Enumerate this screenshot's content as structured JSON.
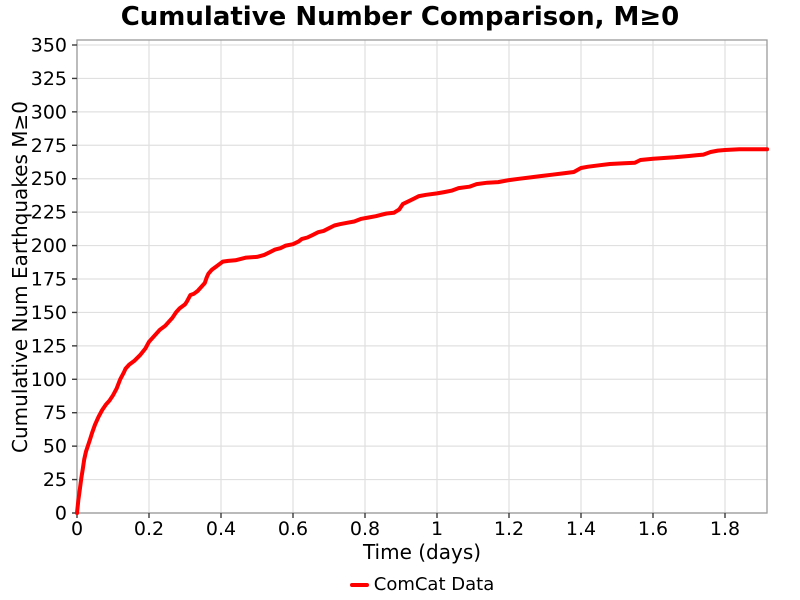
{
  "colors": {
    "series_red": "#ff0000",
    "grid": "#e0e0e0",
    "spine": "#9a9a9a",
    "tick": "#3a3a3a",
    "text": "#000000",
    "background": "#ffffff"
  },
  "chart_data": {
    "type": "line",
    "title": "Cumulative Number Comparison, M≥0",
    "xlabel": "Time (days)",
    "ylabel": "Cumulative Num Earthquakes M≥0",
    "xlim": [
      0,
      1.9166
    ],
    "ylim": [
      0,
      353.7
    ],
    "grid": true,
    "legend_position": "below-center",
    "x_ticks": [
      0,
      0.2,
      0.4,
      0.6,
      0.8,
      1,
      1.2,
      1.4,
      1.6,
      1.8
    ],
    "x_tick_labels": [
      "0",
      "0.2",
      "0.4",
      "0.6",
      "0.8",
      "1",
      "1.2",
      "1.4",
      "1.6",
      "1.8"
    ],
    "y_ticks": [
      0,
      25,
      50,
      75,
      100,
      125,
      150,
      175,
      200,
      225,
      250,
      275,
      300,
      325,
      350
    ],
    "y_tick_labels": [
      "0",
      "25",
      "50",
      "75",
      "100",
      "125",
      "150",
      "175",
      "200",
      "225",
      "250",
      "275",
      "300",
      "325",
      "350"
    ],
    "legend": {
      "entries": [
        {
          "label": "ComCat Data",
          "color": "#ff0000"
        }
      ]
    },
    "series": [
      {
        "name": "ComCat Data",
        "color": "#ff0000",
        "line_width": 4,
        "x": [
          0,
          0.004,
          0.008,
          0.012,
          0.016,
          0.02,
          0.025,
          0.03,
          0.036,
          0.042,
          0.05,
          0.06,
          0.07,
          0.08,
          0.09,
          0.1,
          0.11,
          0.12,
          0.13,
          0.135,
          0.145,
          0.16,
          0.175,
          0.19,
          0.2,
          0.21,
          0.22,
          0.23,
          0.245,
          0.255,
          0.265,
          0.275,
          0.285,
          0.3,
          0.305,
          0.315,
          0.325,
          0.335,
          0.345,
          0.355,
          0.36,
          0.365,
          0.375,
          0.385,
          0.395,
          0.405,
          0.42,
          0.44,
          0.455,
          0.47,
          0.5,
          0.52,
          0.535,
          0.55,
          0.565,
          0.58,
          0.6,
          0.615,
          0.625,
          0.64,
          0.655,
          0.67,
          0.685,
          0.7,
          0.715,
          0.73,
          0.75,
          0.77,
          0.79,
          0.81,
          0.83,
          0.845,
          0.86,
          0.88,
          0.895,
          0.905,
          0.92,
          0.935,
          0.95,
          0.97,
          1.0,
          1.02,
          1.04,
          1.06,
          1.09,
          1.11,
          1.14,
          1.17,
          1.2,
          1.23,
          1.26,
          1.29,
          1.32,
          1.35,
          1.38,
          1.4,
          1.42,
          1.45,
          1.48,
          1.52,
          1.55,
          1.565,
          1.6,
          1.63,
          1.66,
          1.7,
          1.72,
          1.74,
          1.76,
          1.78,
          1.8,
          1.84,
          1.88,
          1.917
        ],
        "y": [
          0,
          10,
          18,
          26,
          33,
          40,
          46,
          50,
          55,
          60,
          66,
          72,
          77,
          81,
          84,
          88,
          93,
          100,
          105,
          108,
          111,
          114,
          118,
          123,
          128,
          131,
          134,
          137,
          140,
          143,
          146,
          150,
          153,
          156,
          158,
          163,
          164,
          166,
          169,
          172,
          176,
          179,
          182,
          184,
          186,
          188,
          188.5,
          189,
          190,
          191,
          191.5,
          193,
          195,
          197,
          198,
          200,
          201,
          203,
          205,
          206,
          208,
          210,
          211,
          213,
          215,
          216,
          217,
          218,
          220,
          221,
          222,
          223,
          224,
          224.5,
          227,
          231,
          233,
          235,
          237,
          238,
          239,
          240,
          241,
          243,
          244,
          246,
          247,
          247.5,
          249,
          250,
          251,
          252,
          253,
          254,
          255,
          258,
          259,
          260,
          261,
          261.5,
          262,
          264,
          265,
          265.5,
          266,
          267,
          267.5,
          268,
          270,
          271,
          271.5,
          272,
          272,
          272
        ]
      }
    ]
  }
}
